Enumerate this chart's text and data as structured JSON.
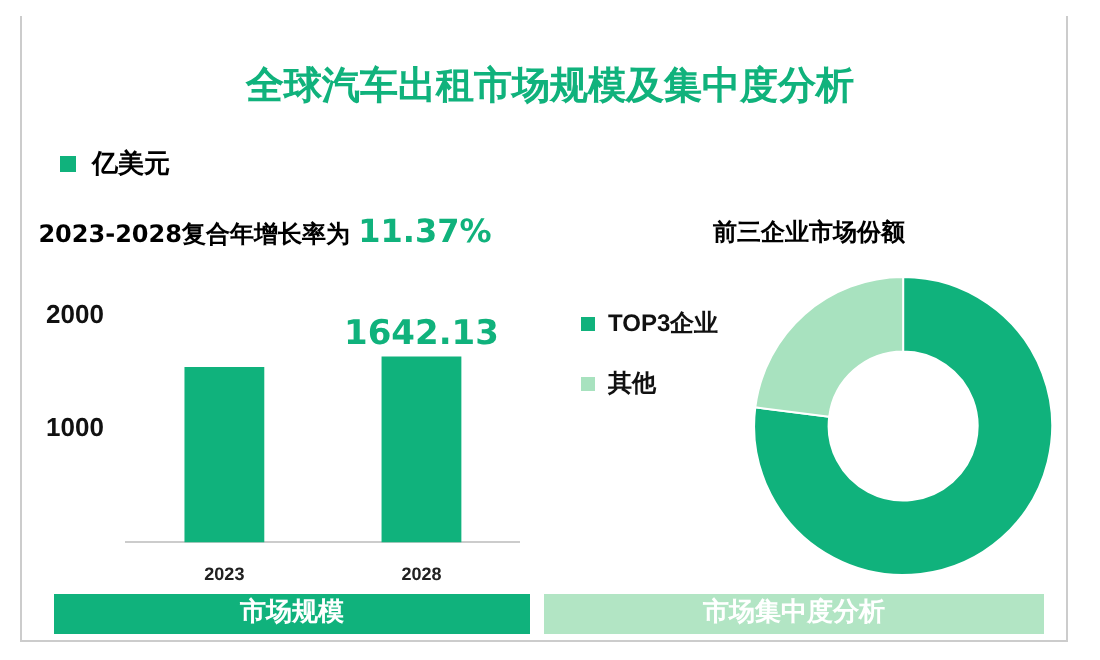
{
  "chart_data": [
    {
      "type": "bar",
      "title": "全球汽车出租市场规模及集中度分析",
      "ylabel": "亿美元",
      "subtitle": "2023-2028复合年增长率为 11.37%",
      "categories": [
        "2023",
        "2028"
      ],
      "values": [
        1550,
        1642.13
      ],
      "color": "#10b27c",
      "value_labels": [
        null,
        "1642.13"
      ],
      "ylim": [
        0,
        2000
      ],
      "yticks": [
        1000,
        2000
      ],
      "annotations": [
        "市场规模"
      ]
    },
    {
      "type": "donut",
      "title": "前三企业市场份额",
      "categories": [
        "TOP3企业",
        "其他"
      ],
      "values": [
        77,
        23
      ],
      "colors": [
        "#10b27c",
        "#a8e2bf"
      ],
      "legend": "left",
      "annotations": [
        "市场集中度分析"
      ]
    }
  ]
}
